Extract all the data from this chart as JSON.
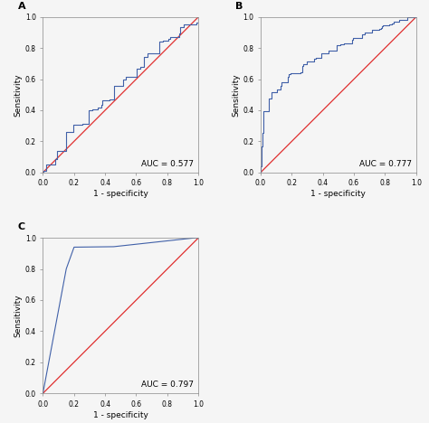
{
  "panels": [
    "A",
    "B",
    "C"
  ],
  "auc_values": [
    0.577,
    0.777,
    0.797
  ],
  "roc_color": "#4060a8",
  "diagonal_color": "#e03030",
  "roc_linewidth": 0.8,
  "diagonal_linewidth": 0.9,
  "xlabel": "1 - specificity",
  "ylabel": "Sensitivity",
  "tick_vals": [
    0.0,
    0.2,
    0.4,
    0.6,
    0.8,
    1.0
  ],
  "background_color": "#f5f5f5",
  "panel_label_fontsize": 8,
  "axis_label_fontsize": 6.5,
  "tick_fontsize": 5.5,
  "auc_fontsize": 6.5
}
